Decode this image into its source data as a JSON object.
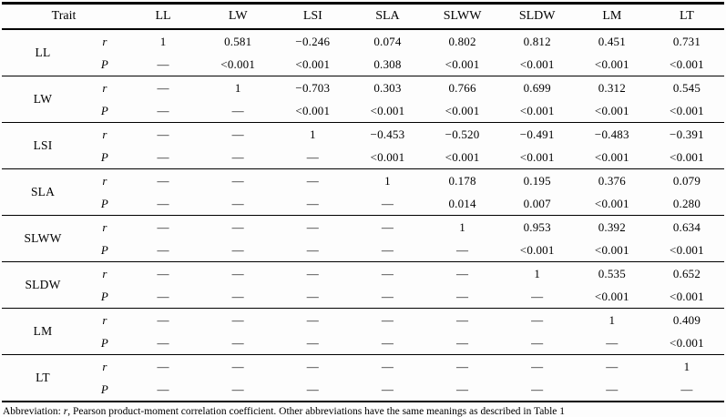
{
  "table": {
    "header": {
      "trait_label": "Trait",
      "columns": [
        "LL",
        "LW",
        "LSI",
        "SLA",
        "SLWW",
        "SLDW",
        "LM",
        "LT"
      ]
    },
    "stat_labels": {
      "r": "r",
      "p": "P"
    },
    "rows": [
      {
        "trait": "LL",
        "r": [
          "1",
          "0.581",
          "−0.246",
          "0.074",
          "0.802",
          "0.812",
          "0.451",
          "0.731"
        ],
        "p": [
          "—",
          "<0.001",
          "<0.001",
          "0.308",
          "<0.001",
          "<0.001",
          "<0.001",
          "<0.001"
        ]
      },
      {
        "trait": "LW",
        "r": [
          "—",
          "1",
          "−0.703",
          "0.303",
          "0.766",
          "0.699",
          "0.312",
          "0.545"
        ],
        "p": [
          "—",
          "—",
          "<0.001",
          "<0.001",
          "<0.001",
          "<0.001",
          "<0.001",
          "<0.001"
        ]
      },
      {
        "trait": "LSI",
        "r": [
          "—",
          "—",
          "1",
          "−0.453",
          "−0.520",
          "−0.491",
          "−0.483",
          "−0.391"
        ],
        "p": [
          "—",
          "—",
          "—",
          "<0.001",
          "<0.001",
          "<0.001",
          "<0.001",
          "<0.001"
        ]
      },
      {
        "trait": "SLA",
        "r": [
          "—",
          "—",
          "—",
          "1",
          "0.178",
          "0.195",
          "0.376",
          "0.079"
        ],
        "p": [
          "—",
          "—",
          "—",
          "—",
          "0.014",
          "0.007",
          "<0.001",
          "0.280"
        ]
      },
      {
        "trait": "SLWW",
        "r": [
          "—",
          "—",
          "—",
          "—",
          "1",
          "0.953",
          "0.392",
          "0.634"
        ],
        "p": [
          "—",
          "—",
          "—",
          "—",
          "—",
          "<0.001",
          "<0.001",
          "<0.001"
        ]
      },
      {
        "trait": "SLDW",
        "r": [
          "—",
          "—",
          "—",
          "—",
          "—",
          "1",
          "0.535",
          "0.652"
        ],
        "p": [
          "—",
          "—",
          "—",
          "—",
          "—",
          "—",
          "<0.001",
          "<0.001"
        ]
      },
      {
        "trait": "LM",
        "r": [
          "—",
          "—",
          "—",
          "—",
          "—",
          "—",
          "1",
          "0.409"
        ],
        "p": [
          "—",
          "—",
          "—",
          "—",
          "—",
          "—",
          "—",
          "<0.001"
        ]
      },
      {
        "trait": "LT",
        "r": [
          "—",
          "—",
          "—",
          "—",
          "—",
          "—",
          "—",
          "1"
        ],
        "p": [
          "—",
          "—",
          "—",
          "—",
          "—",
          "—",
          "—",
          "—"
        ]
      }
    ],
    "footnote": {
      "prefix": "Abbreviation: ",
      "r_symbol": "r",
      "rest": ", Pearson product-moment correlation coefficient. Other abbreviations have the same meanings as described in Table 1"
    }
  }
}
